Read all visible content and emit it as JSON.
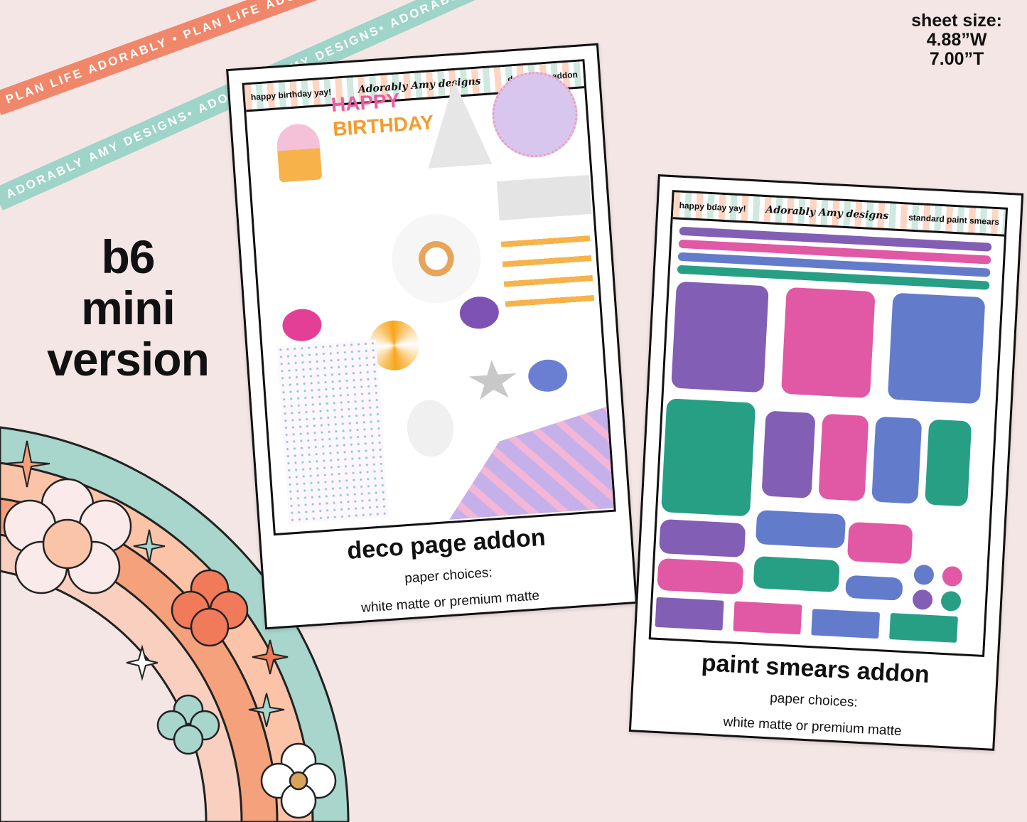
{
  "ribbons": {
    "top": "PLAN LIFE ADORABLY • PLAN LIFE ADORABLY • PLAN LIFE ADORABLY",
    "bottom": "ADORABLY AMY DESIGNS• ADORABLY AMY DESIGNS• ADORABLY AMY DESIGNS"
  },
  "sheet_size": {
    "label": "sheet size:",
    "width": "4.88”W",
    "height": "7.00”T"
  },
  "version": [
    "b6",
    "mini",
    "version"
  ],
  "products": [
    {
      "header_left": "happy birthday yay!",
      "logo": "Adorably Amy designs",
      "header_right": "deco page addon",
      "title": "deco page addon",
      "paper_label": "paper choices:",
      "paper_options": "white matte or premium matte",
      "sticker_text": [
        "HAPPY",
        "BIRTHDAY"
      ]
    },
    {
      "header_left": "happy bday yay!",
      "logo": "Adorably Amy designs",
      "header_right": "standard paint smears",
      "title": "paint smears addon",
      "paper_label": "paper choices:",
      "paper_options": "white matte or premium matte"
    }
  ],
  "colors": {
    "purple": "#7b55b0",
    "pink": "#df4fa0",
    "blue": "#5b74c8",
    "teal": "#1a9a7e",
    "coral": "#f0876a",
    "mint": "#9fd4c8"
  }
}
